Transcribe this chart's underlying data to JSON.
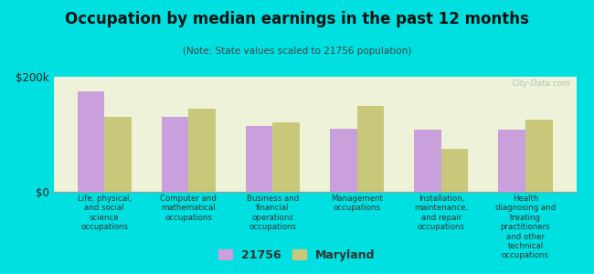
{
  "title": "Occupation by median earnings in the past 12 months",
  "subtitle": "(Note: State values scaled to 21756 population)",
  "background_color": "#00e0e0",
  "plot_bg_color": "#edf2d8",
  "categories": [
    "Life, physical,\nand social\nscience\noccupations",
    "Computer and\nmathematical\noccupations",
    "Business and\nfinancial\noperations\noccupations",
    "Management\noccupations",
    "Installation,\nmaintenance,\nand repair\noccupations",
    "Health\ndiagnosing and\ntreating\npractitioners\nand other\ntechnical\noccupations"
  ],
  "values_21756": [
    175000,
    130000,
    115000,
    110000,
    108000,
    108000
  ],
  "values_maryland": [
    130000,
    145000,
    120000,
    150000,
    75000,
    125000
  ],
  "color_21756": "#c9a0dc",
  "color_maryland": "#c8c87a",
  "ylim": [
    0,
    200000
  ],
  "yticks": [
    0,
    200000
  ],
  "ytick_labels": [
    "$0",
    "$200k"
  ],
  "legend_labels": [
    "21756",
    "Maryland"
  ],
  "watermark": "City-Data.com"
}
